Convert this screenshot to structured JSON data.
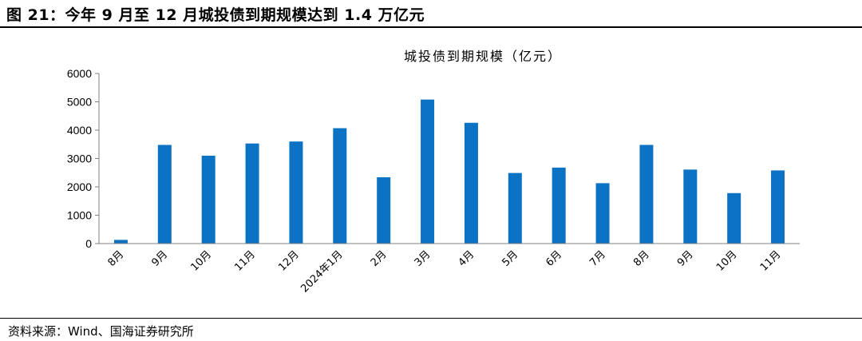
{
  "figure": {
    "title": "图 21：今年 9 月至 12 月城投债到期规模达到 1.4 万亿元",
    "source": "资料来源：Wind、国海证券研究所"
  },
  "colors": {
    "bar": "#0B72C4",
    "axis": "#808080"
  },
  "chart_data": {
    "type": "bar",
    "title": "城投债到期规模（亿元）",
    "xlabel": "",
    "ylabel": "",
    "ylim": [
      0,
      6000
    ],
    "yticks": [
      0,
      1000,
      2000,
      3000,
      4000,
      5000,
      6000
    ],
    "grid": false,
    "categories": [
      "8月",
      "9月",
      "10月",
      "11月",
      "12月",
      "2024年1月",
      "2月",
      "3月",
      "4月",
      "5月",
      "6月",
      "7月",
      "8月",
      "9月",
      "10月",
      "11月"
    ],
    "values": [
      130,
      3480,
      3100,
      3530,
      3600,
      4070,
      2340,
      5080,
      4260,
      2490,
      2680,
      2130,
      3480,
      2610,
      1780,
      2580
    ]
  }
}
